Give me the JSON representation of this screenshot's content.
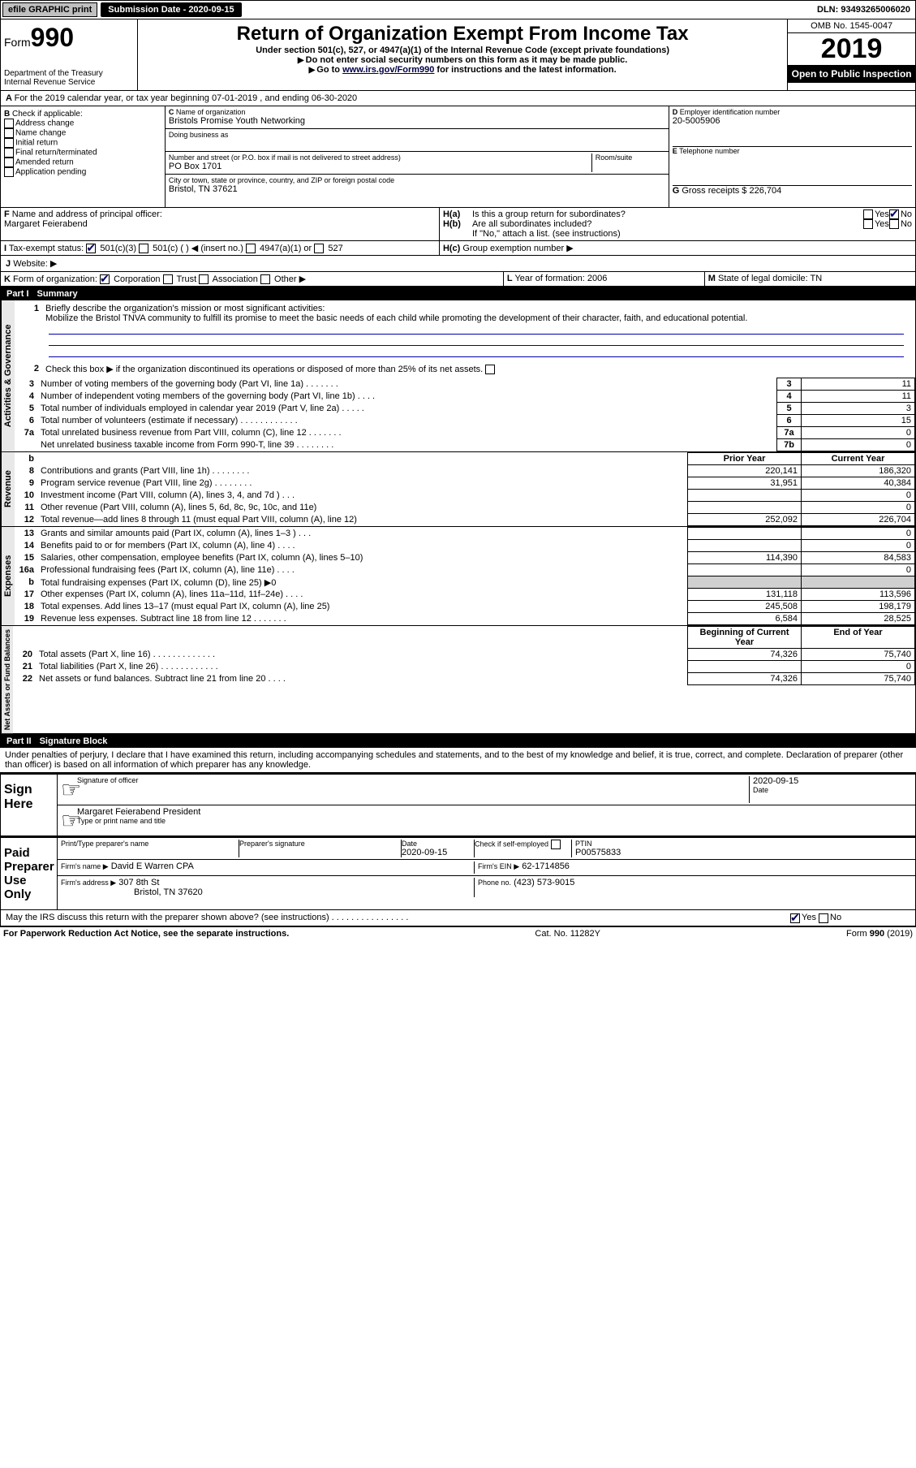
{
  "topbar": {
    "efile": "efile GRAPHIC print",
    "submission_label": "Submission Date - 2020-09-15",
    "dln": "DLN: 93493265006020"
  },
  "header": {
    "form_label": "Form",
    "form_num": "990",
    "dept": "Department of the Treasury",
    "irs": "Internal Revenue Service",
    "title": "Return of Organization Exempt From Income Tax",
    "sub1": "Under section 501(c), 527, or 4947(a)(1) of the Internal Revenue Code (except private foundations)",
    "sub2": "Do not enter social security numbers on this form as it may be made public.",
    "sub3_pre": "Go to ",
    "sub3_link": "www.irs.gov/Form990",
    "sub3_post": " for instructions and the latest information.",
    "omb": "OMB No. 1545-0047",
    "year": "2019",
    "open": "Open to Public Inspection"
  },
  "period": {
    "line": "For the 2019 calendar year, or tax year beginning 07-01-2019    , and ending 06-30-2020"
  },
  "sectionB": {
    "label": "Check if applicable:",
    "opts": [
      "Address change",
      "Name change",
      "Initial return",
      "Final return/terminated",
      "Amended return",
      "Application pending"
    ]
  },
  "sectionC": {
    "name_label": "Name of organization",
    "name": "Bristols Promise Youth Networking",
    "dba_label": "Doing business as",
    "addr_label": "Number and street (or P.O. box if mail is not delivered to street address)",
    "room_label": "Room/suite",
    "addr": "PO Box 1701",
    "city_label": "City or town, state or province, country, and ZIP or foreign postal code",
    "city": "Bristol, TN  37621"
  },
  "sectionD": {
    "label": "Employer identification number",
    "val": "20-5005906"
  },
  "sectionE": {
    "label": "Telephone number"
  },
  "sectionG": {
    "label": "Gross receipts $",
    "val": "226,704"
  },
  "sectionF": {
    "label": "Name and address of principal officer:",
    "name": "Margaret Feierabend"
  },
  "sectionH": {
    "a": "Is this a group return for subordinates?",
    "b": "Are all subordinates included?",
    "b_note": "If \"No,\" attach a list. (see instructions)",
    "c": "Group exemption number ▶",
    "yes": "Yes",
    "no": "No"
  },
  "sectionI": {
    "label": "Tax-exempt status:",
    "o1": "501(c)(3)",
    "o2": "501(c) (   ) ◀ (insert no.)",
    "o3": "4947(a)(1) or",
    "o4": "527"
  },
  "sectionJ": {
    "label": "Website: ▶"
  },
  "sectionK": {
    "label": "Form of organization:",
    "o1": "Corporation",
    "o2": "Trust",
    "o3": "Association",
    "o4": "Other ▶"
  },
  "sectionL": {
    "label": "Year of formation:",
    "val": "2006"
  },
  "sectionM": {
    "label": "State of legal domicile:",
    "val": "TN"
  },
  "part1": {
    "title": "Part I",
    "heading": "Summary",
    "q1_label": "Briefly describe the organization's mission or most significant activities:",
    "q1_text": "Mobilize the Bristol TNVA community to fulfill its promise to meet the basic needs of each child while promoting the development of their character, faith, and educational potential.",
    "q2": "Check this box ▶      if the organization discontinued its operations or disposed of more than 25% of its net assets.",
    "vtab_gov": "Activities & Governance",
    "vtab_rev": "Revenue",
    "vtab_exp": "Expenses",
    "vtab_net": "Net Assets or Fund Balances",
    "prior_year": "Prior Year",
    "current_year": "Current Year",
    "beg_year": "Beginning of Current Year",
    "end_year": "End of Year",
    "rows_gov": [
      {
        "n": "3",
        "t": "Number of voting members of the governing body (Part VI, line 1a)   .    .    .    .    .    .    .",
        "box": "3",
        "v": "11"
      },
      {
        "n": "4",
        "t": "Number of independent voting members of the governing body (Part VI, line 1b)   .    .    .    .",
        "box": "4",
        "v": "11"
      },
      {
        "n": "5",
        "t": "Total number of individuals employed in calendar year 2019 (Part V, line 2a)   .    .    .    .    .",
        "box": "5",
        "v": "3"
      },
      {
        "n": "6",
        "t": "Total number of volunteers (estimate if necessary)    .    .    .    .    .    .    .    .    .    .    .    .",
        "box": "6",
        "v": "15"
      },
      {
        "n": "7a",
        "t": "Total unrelated business revenue from Part VIII, column (C), line 12   .    .    .    .    .    .    .",
        "box": "7a",
        "v": "0"
      },
      {
        "n": "",
        "t": "Net unrelated business taxable income from Form 990-T, line 39   .    .    .    .    .    .    .    .",
        "box": "7b",
        "v": "0"
      }
    ],
    "rows_rev": [
      {
        "n": "8",
        "t": "Contributions and grants (Part VIII, line 1h)   .    .    .    .    .    .    .    .",
        "py": "220,141",
        "cy": "186,320"
      },
      {
        "n": "9",
        "t": "Program service revenue (Part VIII, line 2g)   .    .    .    .    .    .    .    .",
        "py": "31,951",
        "cy": "40,384"
      },
      {
        "n": "10",
        "t": "Investment income (Part VIII, column (A), lines 3, 4, and 7d )    .    .    .",
        "py": "",
        "cy": "0"
      },
      {
        "n": "11",
        "t": "Other revenue (Part VIII, column (A), lines 5, 6d, 8c, 9c, 10c, and 11e)",
        "py": "",
        "cy": "0"
      },
      {
        "n": "12",
        "t": "Total revenue—add lines 8 through 11 (must equal Part VIII, column (A), line 12)",
        "py": "252,092",
        "cy": "226,704"
      }
    ],
    "rows_exp": [
      {
        "n": "13",
        "t": "Grants and similar amounts paid (Part IX, column (A), lines 1–3 )   .    .    .",
        "py": "",
        "cy": "0"
      },
      {
        "n": "14",
        "t": "Benefits paid to or for members (Part IX, column (A), line 4)   .    .    .    .",
        "py": "",
        "cy": "0"
      },
      {
        "n": "15",
        "t": "Salaries, other compensation, employee benefits (Part IX, column (A), lines 5–10)",
        "py": "114,390",
        "cy": "84,583"
      },
      {
        "n": "16a",
        "t": "Professional fundraising fees (Part IX, column (A), line 11e)   .    .    .    .",
        "py": "",
        "cy": "0"
      },
      {
        "n": "b",
        "t": "Total fundraising expenses (Part IX, column (D), line 25) ▶0",
        "py": "shade",
        "cy": "shade"
      },
      {
        "n": "17",
        "t": "Other expenses (Part IX, column (A), lines 11a–11d, 11f–24e)   .    .    .    .",
        "py": "131,118",
        "cy": "113,596"
      },
      {
        "n": "18",
        "t": "Total expenses. Add lines 13–17 (must equal Part IX, column (A), line 25)",
        "py": "245,508",
        "cy": "198,179"
      },
      {
        "n": "19",
        "t": "Revenue less expenses. Subtract line 18 from line 12 .    .    .    .    .    .    .",
        "py": "6,584",
        "cy": "28,525"
      }
    ],
    "rows_net": [
      {
        "n": "20",
        "t": "Total assets (Part X, line 16)   .    .    .    .    .    .    .    .    .    .    .    .    .",
        "py": "74,326",
        "cy": "75,740"
      },
      {
        "n": "21",
        "t": "Total liabilities (Part X, line 26)   .    .    .    .    .    .    .    .    .    .    .    .",
        "py": "",
        "cy": "0"
      },
      {
        "n": "22",
        "t": "Net assets or fund balances. Subtract line 21 from line 20   .    .    .    .",
        "py": "74,326",
        "cy": "75,740"
      }
    ]
  },
  "part2": {
    "title": "Part II",
    "heading": "Signature Block",
    "perjury": "Under penalties of perjury, I declare that I have examined this return, including accompanying schedules and statements, and to the best of my knowledge and belief, it is true, correct, and complete. Declaration of preparer (other than officer) is based on all information of which preparer has any knowledge.",
    "sign_here": "Sign Here",
    "sig_officer": "Signature of officer",
    "sig_date": "2020-09-15",
    "date_label": "Date",
    "officer_name": "Margaret Feierabend President",
    "type_name": "Type or print name and title",
    "paid": "Paid Preparer Use Only",
    "print_name": "Print/Type preparer's name",
    "prep_sig": "Preparer's signature",
    "prep_date_label": "Date",
    "prep_date": "2020-09-15",
    "check_self": "Check      if self-employed",
    "ptin_label": "PTIN",
    "ptin": "P00575833",
    "firm_name_label": "Firm's name    ▶",
    "firm_name": "David E Warren CPA",
    "firm_ein_label": "Firm's EIN ▶",
    "firm_ein": "62-1714856",
    "firm_addr_label": "Firm's address ▶",
    "firm_addr1": "307 8th St",
    "firm_addr2": "Bristol, TN   37620",
    "phone_label": "Phone no.",
    "phone": "(423) 573-9015",
    "discuss": "May the IRS discuss this return with the preparer shown above? (see instructions)    .    .    .    .    .    .    .    .    .    .    .    .    .    .    .    ."
  },
  "footer": {
    "left": "For Paperwork Reduction Act Notice, see the separate instructions.",
    "mid": "Cat. No. 11282Y",
    "right": "Form 990 (2019)"
  }
}
